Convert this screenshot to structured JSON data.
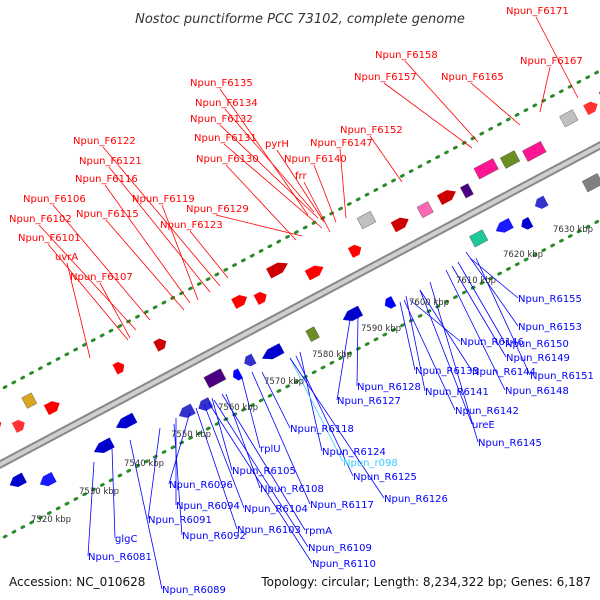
{
  "title": "Nostoc punctiforme PCC 73102, complete genome",
  "footer": {
    "accession": "Accession: NC_010628",
    "topology": "Topology: circular; Length: 8,234,322 bp; Genes: 6,187"
  },
  "colors": {
    "forward_label": "#ff0000",
    "reverse_label": "#0000ff",
    "rna_label": "#33ccff",
    "backbone": "#aaaaaa",
    "ring_dots": "#2a8a2a"
  },
  "kbp_ticks": [
    "7520 kbp",
    "7530 kbp",
    "7540 kbp",
    "7550 kbp",
    "7560 kbp",
    "7570 kbp",
    "7580 kbp",
    "7590 kbp",
    "7600 kbp",
    "7610 kbp",
    "7620 kbp",
    "7630 kbp"
  ],
  "forward_labels": [
    "Npun_F6171",
    "Npun_F6158",
    "Npun_F6167",
    "Npun_F6157",
    "Npun_F6165",
    "Npun_F6135",
    "Npun_F6134",
    "Npun_F6132",
    "pyrH",
    "Npun_F6131",
    "Npun_F6152",
    "Npun_F6122",
    "Npun_F6140",
    "Npun_F6147",
    "Npun_F6130",
    "Npun_F6121",
    "frr",
    "Npun_F6116",
    "Npun_F6106",
    "Npun_F6119",
    "Npun_F6129",
    "Npun_F6115",
    "Npun_F6102",
    "Npun_F6123",
    "Npun_F6101",
    "uvrA",
    "Npun_F6107"
  ],
  "reverse_labels": [
    "Npun_R6155",
    "Npun_R6153",
    "Npun_R6146",
    "Npun_R6150",
    "Npun_R6149",
    "Npun_R6144",
    "Npun_R6151",
    "Npun_R6133",
    "Npun_R6148",
    "Npun_R6141",
    "Npun_R6128",
    "Npun_R6127",
    "Npun_R6142",
    "ureE",
    "Npun_R6145",
    "Npun_R6118",
    "Npun_R6124",
    "Npun_r098",
    "rplU",
    "Npun_R6105",
    "Npun_R6125",
    "Npun_R6108",
    "Npun_R6126",
    "Npun_R6096",
    "Npun_R6117",
    "Npun_R6094",
    "Npun_R6104",
    "Npun_R6091",
    "Npun_R6103",
    "rpmA",
    "Npun_R6092",
    "Npun_R6109",
    "glgC",
    "Npun_R6110",
    "Npun_R6081",
    "Npun_R6089"
  ]
}
